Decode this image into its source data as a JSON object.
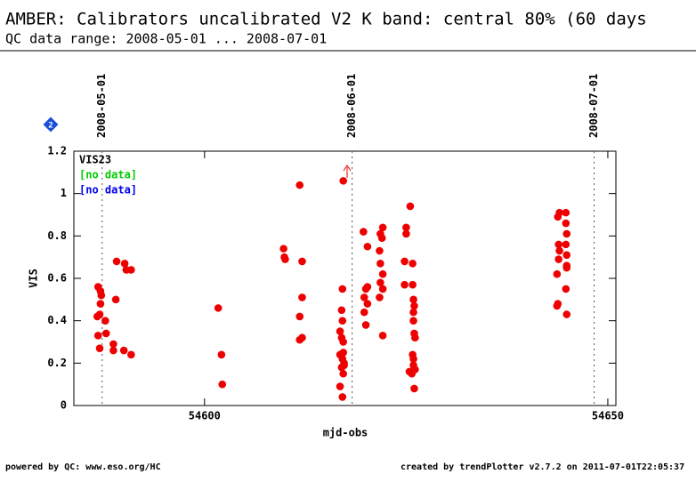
{
  "chart_data": {
    "type": "scatter",
    "title": "AMBER: Calibrators uncalibrated V2 K band: central 80% (60 days",
    "subtitle": "QC data range: 2008-05-01 ... 2008-07-01",
    "x_label": "mjd-obs",
    "y_label": "VIS",
    "badge": "2",
    "xlim": [
      54583.8,
      54651
    ],
    "ylim": [
      0,
      1.2
    ],
    "xticks": [
      54600,
      54650
    ],
    "yticks": [
      0,
      0.2,
      0.4,
      0.6,
      0.8,
      1,
      1.2
    ],
    "date_lines": [
      {
        "x": 54587.3,
        "label": "2008-05-01"
      },
      {
        "x": 54618.3,
        "label": "2008-06-01"
      },
      {
        "x": 54648.3,
        "label": "2008-07-01"
      }
    ],
    "series": [
      {
        "name": "VIS23",
        "label_color": "#000000",
        "color": "#ee0000",
        "x": [
          54586.8,
          54587.1,
          54587.2,
          54587.0,
          54586.7,
          54587.1,
          54586.8,
          54587.0,
          54587.7,
          54587.8,
          54589.1,
          54590.1,
          54590.9,
          54590.3,
          54589.0,
          54588.7,
          54588.7,
          54590.0,
          54590.9,
          54601.7,
          54602.1,
          54602.2,
          54609.8,
          54609.9,
          54610.0,
          54611.8,
          54612.1,
          54612.1,
          54611.8,
          54611.8,
          54612.1,
          54617.2,
          54617.1,
          54617.0,
          54617.1,
          54616.8,
          54617.0,
          54617.2,
          54616.8,
          54617.1,
          54617.3,
          54617.0,
          54617.2,
          54616.8,
          54617.1,
          54617.2,
          54617.3,
          54619.7,
          54620.2,
          54620.0,
          54620.2,
          54619.8,
          54620.2,
          54619.8,
          54620.0,
          54622.1,
          54621.8,
          54622.0,
          54621.7,
          54621.8,
          54622.1,
          54621.8,
          54622.1,
          54621.7,
          54622.1,
          54625.5,
          54625.0,
          54625.0,
          54624.8,
          54624.8,
          54625.8,
          54625.8,
          54625.9,
          54626.0,
          54625.9,
          54625.9,
          54626.0,
          54626.1,
          54625.8,
          54625.9,
          54626.1,
          54625.7,
          54626.0,
          54625.9,
          54625.4,
          54644.0,
          54644.8,
          54643.8,
          54643.9,
          54644.8,
          54644.9,
          54644.8,
          54644.9,
          54644.0,
          54643.9,
          54643.7,
          54644.9,
          54644.9,
          54644.8,
          54643.8,
          54643.7,
          54644.9
        ],
        "values": [
          0.56,
          0.54,
          0.52,
          0.43,
          0.42,
          0.48,
          0.33,
          0.27,
          0.4,
          0.34,
          0.68,
          0.67,
          0.64,
          0.64,
          0.5,
          0.29,
          0.26,
          0.26,
          0.24,
          0.46,
          0.24,
          0.1,
          0.74,
          0.7,
          0.69,
          1.04,
          0.68,
          0.51,
          0.42,
          0.31,
          0.32,
          1.06,
          0.55,
          0.45,
          0.4,
          0.35,
          0.32,
          0.3,
          0.24,
          0.22,
          0.2,
          0.18,
          0.15,
          0.09,
          0.04,
          0.25,
          0.19,
          0.82,
          0.75,
          0.55,
          0.56,
          0.51,
          0.48,
          0.44,
          0.38,
          0.84,
          0.81,
          0.79,
          0.73,
          0.67,
          0.62,
          0.58,
          0.55,
          0.51,
          0.33,
          0.94,
          0.84,
          0.81,
          0.68,
          0.57,
          0.67,
          0.57,
          0.5,
          0.47,
          0.44,
          0.4,
          0.34,
          0.32,
          0.24,
          0.19,
          0.17,
          0.15,
          0.08,
          0.22,
          0.16,
          0.91,
          0.91,
          0.89,
          0.76,
          0.86,
          0.81,
          0.76,
          0.71,
          0.73,
          0.69,
          0.62,
          0.66,
          0.65,
          0.55,
          0.48,
          0.47,
          0.43
        ]
      },
      {
        "name": "[no data]",
        "label_color": "#00cc00",
        "color": "#00cc00",
        "x": [],
        "values": []
      },
      {
        "name": "[no data]",
        "label_color": "#0000ee",
        "color": "#0000ee",
        "x": [],
        "values": []
      }
    ]
  },
  "footer": {
    "left": "powered by QC: www.eso.org/HC",
    "right": "created by trendPlotter v2.7.2 on 2011-07-01T22:05:37"
  }
}
